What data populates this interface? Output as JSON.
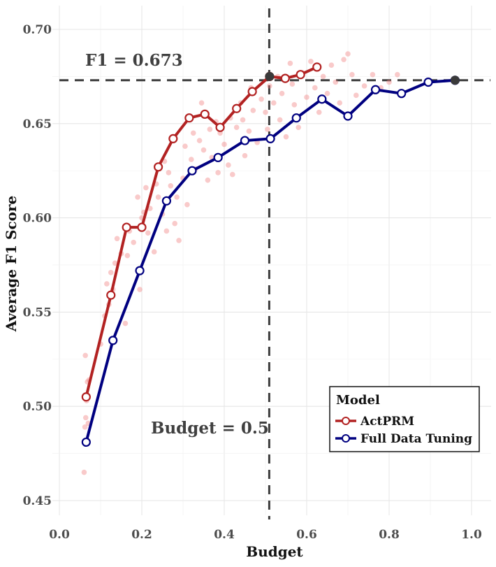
{
  "chart_data": {
    "type": "line",
    "xlabel": "Budget",
    "ylabel": "Average F1 Score",
    "xlim": [
      0.0,
      1.0
    ],
    "ylim": [
      0.45,
      0.7
    ],
    "xticks": [
      "0.0",
      "0.2",
      "0.4",
      "0.6",
      "0.8",
      "1.0"
    ],
    "yticks": [
      "0.45",
      "0.50",
      "0.55",
      "0.60",
      "0.65",
      "0.70"
    ],
    "grid": true,
    "legend_position": "bottom-right",
    "legend_title": "Model",
    "series": [
      {
        "name": "ActPRM",
        "color": "#b22222",
        "x": [
          0.065,
          0.125,
          0.163,
          0.2,
          0.24,
          0.276,
          0.315,
          0.353,
          0.39,
          0.43,
          0.468,
          0.51,
          0.548,
          0.585,
          0.625
        ],
        "y": [
          0.505,
          0.559,
          0.595,
          0.595,
          0.627,
          0.642,
          0.653,
          0.655,
          0.648,
          0.658,
          0.667,
          0.675,
          0.674,
          0.676,
          0.68
        ]
      },
      {
        "name": "Full Data Tuning",
        "color": "#000080",
        "x": [
          0.065,
          0.13,
          0.195,
          0.26,
          0.322,
          0.385,
          0.45,
          0.512,
          0.575,
          0.637,
          0.7,
          0.767,
          0.83,
          0.895,
          0.96
        ],
        "y": [
          0.481,
          0.535,
          0.572,
          0.609,
          0.625,
          0.632,
          0.641,
          0.642,
          0.653,
          0.663,
          0.654,
          0.668,
          0.666,
          0.672,
          0.673
        ]
      }
    ],
    "scatter_points": {
      "color": "#f08080",
      "x": [
        0.06,
        0.062,
        0.064,
        0.066,
        0.068,
        0.063,
        0.07,
        0.072,
        0.1,
        0.11,
        0.115,
        0.12,
        0.125,
        0.13,
        0.135,
        0.14,
        0.15,
        0.16,
        0.165,
        0.17,
        0.18,
        0.19,
        0.195,
        0.2,
        0.205,
        0.21,
        0.215,
        0.22,
        0.23,
        0.235,
        0.24,
        0.25,
        0.255,
        0.26,
        0.265,
        0.27,
        0.28,
        0.285,
        0.29,
        0.3,
        0.305,
        0.31,
        0.32,
        0.325,
        0.33,
        0.34,
        0.345,
        0.35,
        0.36,
        0.365,
        0.37,
        0.38,
        0.385,
        0.39,
        0.4,
        0.41,
        0.415,
        0.42,
        0.43,
        0.44,
        0.445,
        0.45,
        0.46,
        0.465,
        0.47,
        0.48,
        0.49,
        0.5,
        0.505,
        0.51,
        0.52,
        0.53,
        0.535,
        0.54,
        0.55,
        0.56,
        0.565,
        0.57,
        0.58,
        0.59,
        0.6,
        0.61,
        0.62,
        0.63,
        0.64,
        0.65,
        0.66,
        0.67,
        0.68,
        0.69,
        0.7,
        0.71,
        0.72,
        0.74,
        0.76,
        0.78,
        0.8,
        0.82
      ],
      "y": [
        0.465,
        0.489,
        0.494,
        0.503,
        0.513,
        0.527,
        0.491,
        0.514,
        0.533,
        0.548,
        0.565,
        0.554,
        0.571,
        0.562,
        0.576,
        0.589,
        0.581,
        0.544,
        0.58,
        0.593,
        0.587,
        0.611,
        0.562,
        0.6,
        0.603,
        0.616,
        0.592,
        0.605,
        0.582,
        0.618,
        0.611,
        0.602,
        0.63,
        0.593,
        0.624,
        0.617,
        0.597,
        0.611,
        0.588,
        0.621,
        0.638,
        0.607,
        0.631,
        0.645,
        0.626,
        0.641,
        0.661,
        0.636,
        0.62,
        0.647,
        0.632,
        0.651,
        0.624,
        0.645,
        0.639,
        0.628,
        0.653,
        0.623,
        0.648,
        0.661,
        0.652,
        0.633,
        0.646,
        0.669,
        0.657,
        0.64,
        0.663,
        0.656,
        0.647,
        0.67,
        0.661,
        0.675,
        0.652,
        0.666,
        0.643,
        0.682,
        0.671,
        0.66,
        0.648,
        0.677,
        0.664,
        0.683,
        0.669,
        0.656,
        0.675,
        0.666,
        0.681,
        0.672,
        0.661,
        0.684,
        0.687,
        0.676,
        0.665,
        0.67,
        0.676,
        0.669,
        0.672,
        0.676
      ]
    },
    "reference_lines": [
      {
        "orientation": "horizontal",
        "value": 0.673,
        "label": "F1 = 0.673"
      },
      {
        "orientation": "vertical",
        "value": 0.51,
        "label": "Budget = 0.5"
      }
    ],
    "highlight_points": [
      {
        "x": 0.51,
        "y": 0.675
      },
      {
        "x": 0.96,
        "y": 0.673
      }
    ]
  }
}
